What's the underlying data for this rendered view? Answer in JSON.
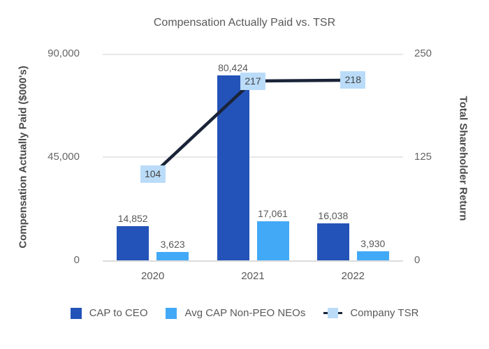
{
  "title": "Compensation Actually Paid vs. TSR",
  "axes": {
    "left": {
      "title": "Compensation Actually Paid ($000's)",
      "ticks": [
        "90,000",
        "45,000",
        "0"
      ]
    },
    "right": {
      "title": "Total Shareholder Return",
      "ticks": [
        "250",
        "125",
        "0"
      ]
    }
  },
  "legend": {
    "items": [
      {
        "label": "CAP to CEO"
      },
      {
        "label": "Avg CAP Non-PEO NEOs"
      },
      {
        "label": "Company TSR"
      }
    ]
  },
  "colors": {
    "ceo_bar": "#2353b8",
    "neo_bar": "#42a9f7",
    "tsr_line": "#1a2438",
    "tsr_label_bg": "#badcf9",
    "value_label_text": "#595959",
    "gridline": "#e7e7e7",
    "axis_line": "#dcdcdc"
  },
  "chart_data": {
    "type": "bar",
    "title": "Compensation Actually Paid vs. TSR",
    "categories": [
      "2020",
      "2021",
      "2022"
    ],
    "series": [
      {
        "name": "CAP to CEO",
        "type": "bar",
        "axis": "left",
        "color": "#2353b8",
        "values": [
          14852,
          80424,
          16038
        ],
        "labels": [
          "14,852",
          "80,424",
          "16,038"
        ]
      },
      {
        "name": "Avg CAP Non-PEO NEOs",
        "type": "bar",
        "axis": "left",
        "color": "#42a9f7",
        "values": [
          3623,
          17061,
          3930
        ],
        "labels": [
          "3,623",
          "17,061",
          "3,930"
        ]
      },
      {
        "name": "Company TSR",
        "type": "line",
        "axis": "right",
        "color": "#1a2438",
        "values": [
          104,
          217,
          218
        ],
        "labels": [
          "104",
          "217",
          "218"
        ]
      }
    ],
    "left_ylabel": "Compensation Actually Paid ($000's)",
    "right_ylabel": "Total Shareholder Return",
    "left_ylim": [
      0,
      90000
    ],
    "right_ylim": [
      0,
      250
    ],
    "grid": true,
    "legend_position": "bottom"
  }
}
